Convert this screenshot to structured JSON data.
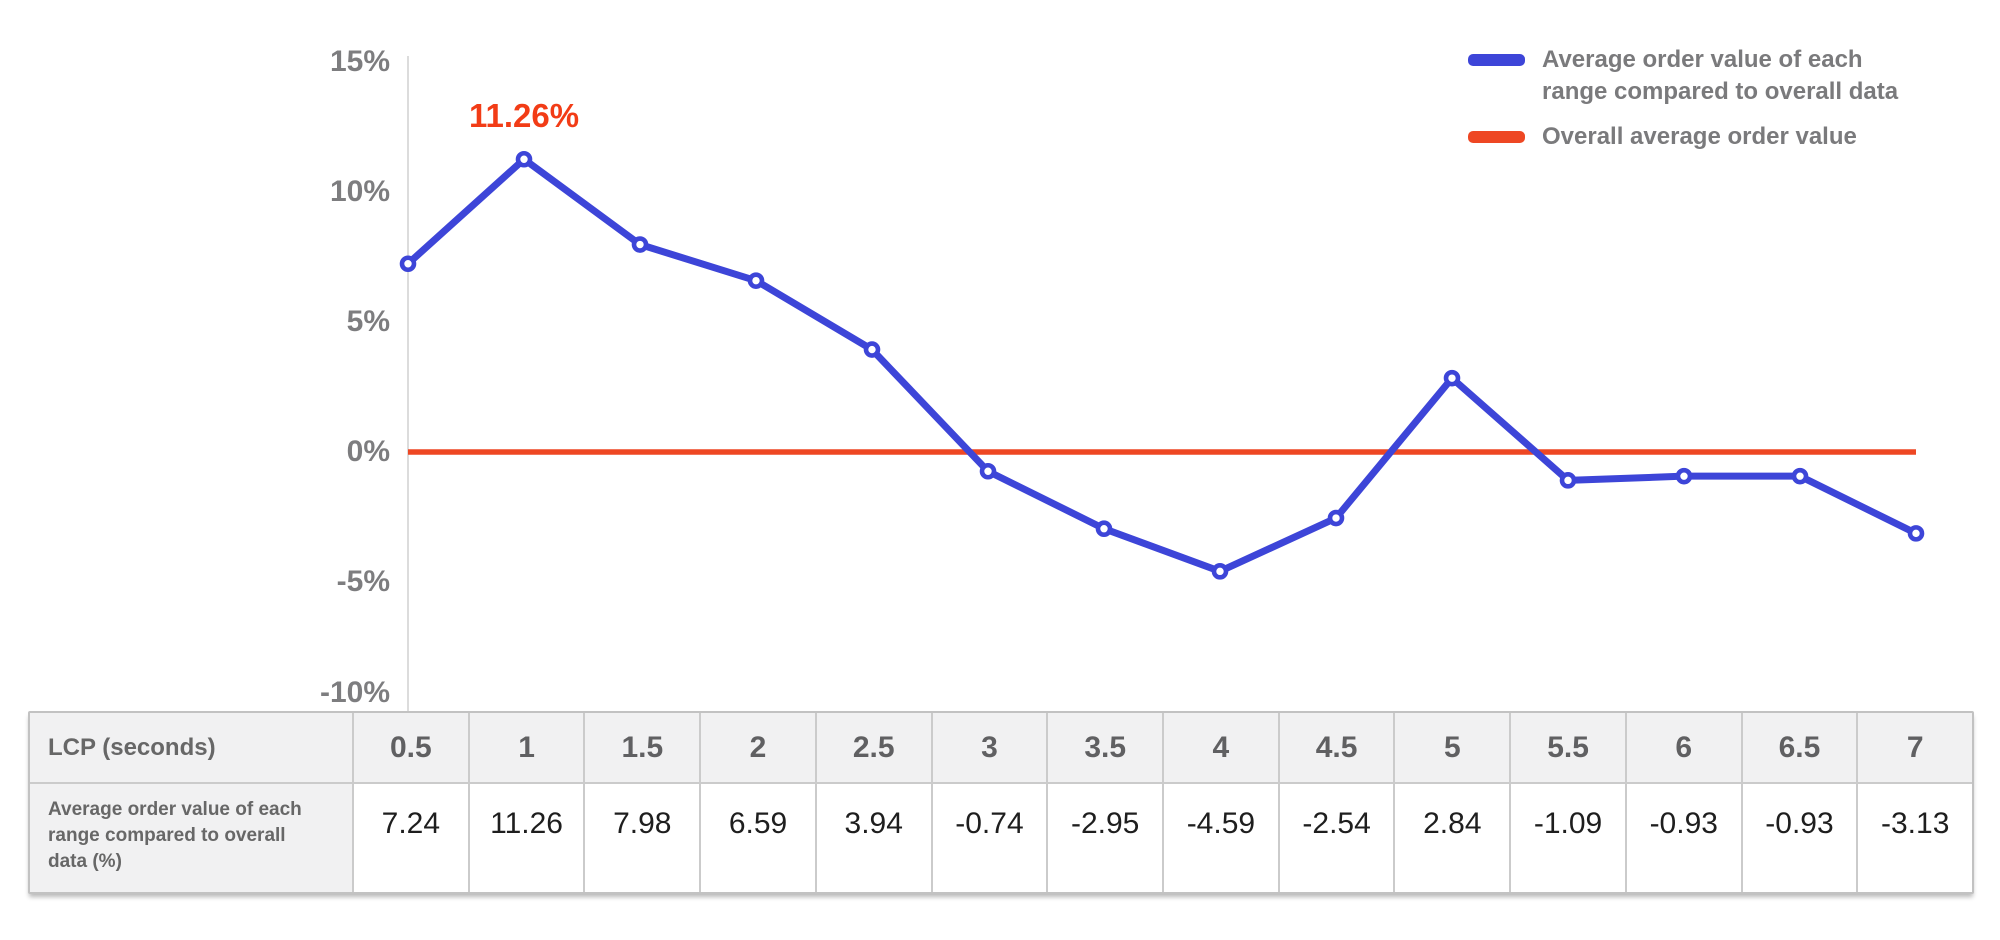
{
  "colors": {
    "line_blue": "#3d45d8",
    "line_red": "#ee4723",
    "annotation_red": "#f23c16",
    "axis_line": "#dcdcdc",
    "tick_text": "#7d7d7f",
    "legend_text": "#7a7a7c",
    "table_header_bg": "#f1f1f2",
    "table_border": "#cbcbcb",
    "value_text": "#1e1e1e"
  },
  "chart_data": {
    "type": "line",
    "title": "",
    "xlabel": "LCP (seconds)",
    "ylabel": "Average order value of each range compared to overall data (%)",
    "x": [
      0.5,
      1,
      1.5,
      2,
      2.5,
      3,
      3.5,
      4,
      4.5,
      5,
      5.5,
      6,
      6.5,
      7
    ],
    "ylim": [
      -10,
      15
    ],
    "grid": false,
    "legend_position": "top-right",
    "yticks": [
      {
        "value": 15,
        "label": "15%"
      },
      {
        "value": 10,
        "label": "10%"
      },
      {
        "value": 5,
        "label": "5%"
      },
      {
        "value": 0,
        "label": "0%"
      },
      {
        "value": -5,
        "label": "-5%"
      },
      {
        "value": -10,
        "label": "-10%"
      }
    ],
    "series": [
      {
        "name": "Average order value of each range compared to overall data",
        "type": "line",
        "color": "#3d45d8",
        "values": [
          7.24,
          11.26,
          7.98,
          6.59,
          3.94,
          -0.74,
          -2.95,
          -4.59,
          -2.54,
          2.84,
          -1.09,
          -0.93,
          -0.93,
          -3.13
        ]
      },
      {
        "name": "Overall average order value",
        "type": "hline",
        "color": "#ee4723",
        "value": 0
      }
    ],
    "annotation": {
      "text": "11.26%",
      "x": 1,
      "y": 11.26
    }
  },
  "legend": {
    "items": [
      {
        "label": "Average order value of each range compared to overall data",
        "color": "#3d45d8"
      },
      {
        "label": "Overall average order value",
        "color": "#ee4723"
      }
    ]
  },
  "table": {
    "corner_label": "LCP (seconds)",
    "row_label": "Average order value of each range compared to overall data (%)",
    "columns": [
      "0.5",
      "1",
      "1.5",
      "2",
      "2.5",
      "3",
      "3.5",
      "4",
      "4.5",
      "5",
      "5.5",
      "6",
      "6.5",
      "7"
    ],
    "values": [
      "7.24",
      "11.26",
      "7.98",
      "6.59",
      "3.94",
      "-0.74",
      "-2.95",
      "-4.59",
      "-2.54",
      "2.84",
      "-1.09",
      "-0.93",
      "-0.93",
      "-3.13"
    ]
  }
}
